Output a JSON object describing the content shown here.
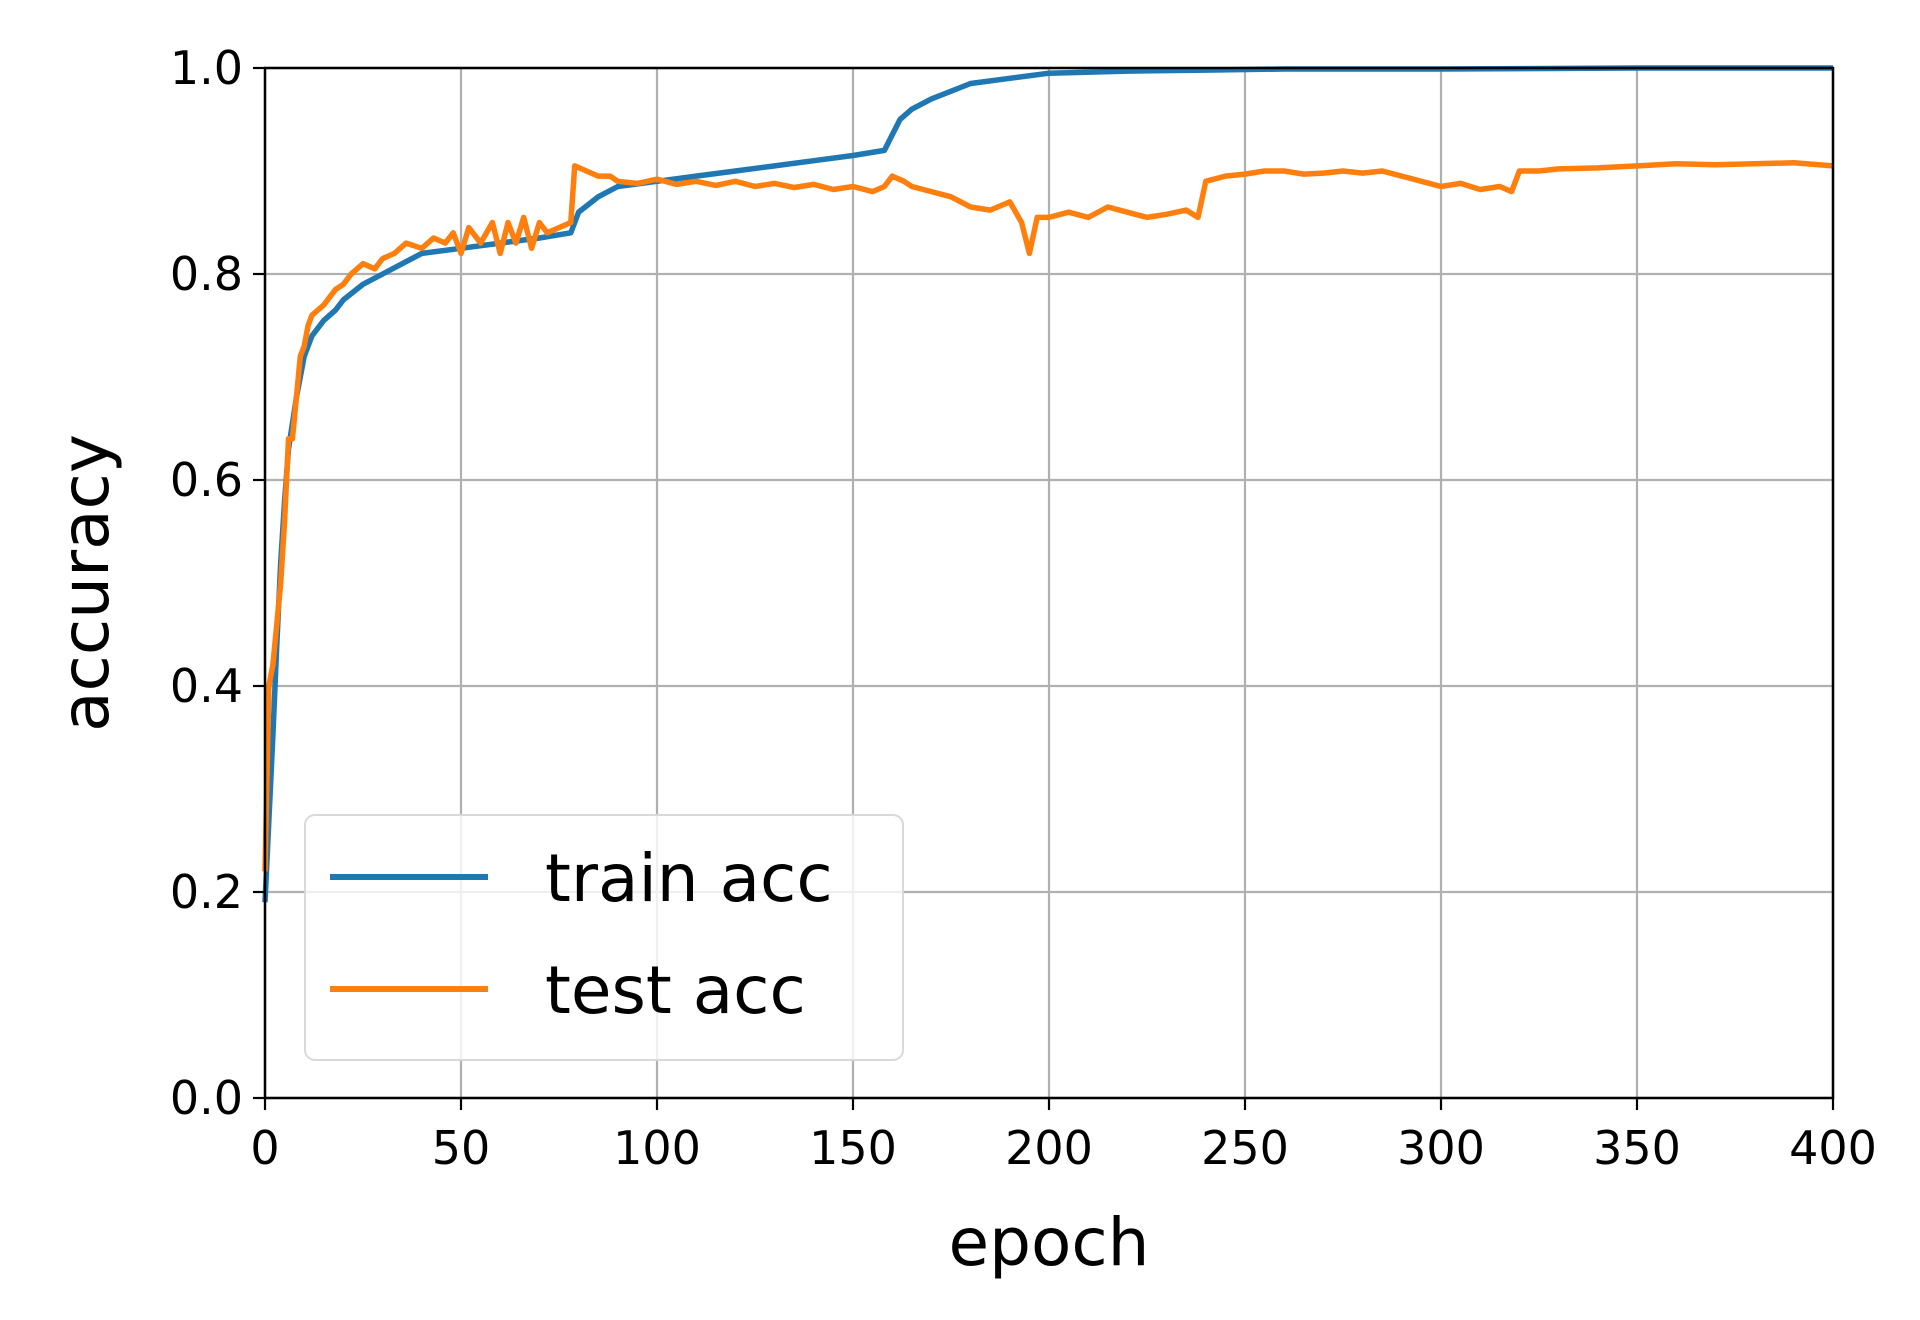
{
  "chart_data": {
    "type": "line",
    "title": "",
    "xlabel": "epoch",
    "ylabel": "accuracy",
    "xlim": [
      0,
      400
    ],
    "ylim": [
      0.0,
      1.0
    ],
    "x_ticks": [
      "0",
      "50",
      "100",
      "150",
      "200",
      "250",
      "300",
      "350",
      "400"
    ],
    "y_ticks": [
      "0.0",
      "0.2",
      "0.4",
      "0.6",
      "0.8",
      "1.0"
    ],
    "grid": true,
    "legend_position": "lower-left",
    "series": [
      {
        "name": "train acc",
        "color": "#1f77b4",
        "points": [
          [
            0,
            0.19
          ],
          [
            1,
            0.27
          ],
          [
            2,
            0.35
          ],
          [
            3,
            0.44
          ],
          [
            4,
            0.52
          ],
          [
            5,
            0.58
          ],
          [
            6,
            0.63
          ],
          [
            8,
            0.68
          ],
          [
            10,
            0.72
          ],
          [
            12,
            0.74
          ],
          [
            15,
            0.755
          ],
          [
            18,
            0.765
          ],
          [
            20,
            0.775
          ],
          [
            25,
            0.79
          ],
          [
            30,
            0.8
          ],
          [
            35,
            0.81
          ],
          [
            40,
            0.82
          ],
          [
            50,
            0.825
          ],
          [
            60,
            0.83
          ],
          [
            70,
            0.835
          ],
          [
            78,
            0.84
          ],
          [
            80,
            0.86
          ],
          [
            85,
            0.875
          ],
          [
            90,
            0.885
          ],
          [
            100,
            0.89
          ],
          [
            110,
            0.895
          ],
          [
            120,
            0.9
          ],
          [
            130,
            0.905
          ],
          [
            140,
            0.91
          ],
          [
            150,
            0.915
          ],
          [
            158,
            0.92
          ],
          [
            160,
            0.935
          ],
          [
            162,
            0.95
          ],
          [
            165,
            0.96
          ],
          [
            170,
            0.97
          ],
          [
            180,
            0.985
          ],
          [
            190,
            0.99
          ],
          [
            200,
            0.995
          ],
          [
            220,
            0.997
          ],
          [
            240,
            0.998
          ],
          [
            260,
            0.999
          ],
          [
            300,
            0.999
          ],
          [
            350,
            1.0
          ],
          [
            400,
            1.0
          ]
        ]
      },
      {
        "name": "test acc",
        "color": "#ff7f0e",
        "points": [
          [
            0,
            0.22
          ],
          [
            1,
            0.4
          ],
          [
            2,
            0.42
          ],
          [
            3,
            0.46
          ],
          [
            4,
            0.5
          ],
          [
            5,
            0.56
          ],
          [
            6,
            0.64
          ],
          [
            7,
            0.64
          ],
          [
            8,
            0.68
          ],
          [
            9,
            0.72
          ],
          [
            10,
            0.73
          ],
          [
            11,
            0.75
          ],
          [
            12,
            0.76
          ],
          [
            15,
            0.77
          ],
          [
            18,
            0.785
          ],
          [
            20,
            0.79
          ],
          [
            22,
            0.8
          ],
          [
            25,
            0.81
          ],
          [
            28,
            0.805
          ],
          [
            30,
            0.815
          ],
          [
            33,
            0.82
          ],
          [
            36,
            0.83
          ],
          [
            40,
            0.825
          ],
          [
            43,
            0.835
          ],
          [
            46,
            0.83
          ],
          [
            48,
            0.84
          ],
          [
            50,
            0.82
          ],
          [
            52,
            0.845
          ],
          [
            55,
            0.83
          ],
          [
            58,
            0.85
          ],
          [
            60,
            0.82
          ],
          [
            62,
            0.85
          ],
          [
            64,
            0.83
          ],
          [
            66,
            0.855
          ],
          [
            68,
            0.825
          ],
          [
            70,
            0.85
          ],
          [
            72,
            0.84
          ],
          [
            75,
            0.845
          ],
          [
            78,
            0.85
          ],
          [
            79,
            0.905
          ],
          [
            82,
            0.9
          ],
          [
            85,
            0.895
          ],
          [
            88,
            0.895
          ],
          [
            90,
            0.89
          ],
          [
            95,
            0.888
          ],
          [
            100,
            0.892
          ],
          [
            105,
            0.887
          ],
          [
            110,
            0.89
          ],
          [
            115,
            0.886
          ],
          [
            120,
            0.89
          ],
          [
            125,
            0.885
          ],
          [
            130,
            0.888
          ],
          [
            135,
            0.884
          ],
          [
            140,
            0.887
          ],
          [
            145,
            0.882
          ],
          [
            150,
            0.885
          ],
          [
            155,
            0.88
          ],
          [
            158,
            0.885
          ],
          [
            160,
            0.895
          ],
          [
            163,
            0.89
          ],
          [
            165,
            0.885
          ],
          [
            170,
            0.88
          ],
          [
            175,
            0.875
          ],
          [
            180,
            0.865
          ],
          [
            185,
            0.862
          ],
          [
            190,
            0.87
          ],
          [
            193,
            0.85
          ],
          [
            195,
            0.82
          ],
          [
            197,
            0.855
          ],
          [
            200,
            0.855
          ],
          [
            205,
            0.86
          ],
          [
            210,
            0.855
          ],
          [
            215,
            0.865
          ],
          [
            220,
            0.86
          ],
          [
            225,
            0.855
          ],
          [
            230,
            0.858
          ],
          [
            235,
            0.862
          ],
          [
            238,
            0.855
          ],
          [
            240,
            0.89
          ],
          [
            245,
            0.895
          ],
          [
            250,
            0.897
          ],
          [
            255,
            0.9
          ],
          [
            260,
            0.9
          ],
          [
            265,
            0.897
          ],
          [
            270,
            0.898
          ],
          [
            275,
            0.9
          ],
          [
            280,
            0.898
          ],
          [
            285,
            0.9
          ],
          [
            290,
            0.895
          ],
          [
            295,
            0.89
          ],
          [
            300,
            0.885
          ],
          [
            305,
            0.888
          ],
          [
            310,
            0.882
          ],
          [
            315,
            0.885
          ],
          [
            318,
            0.88
          ],
          [
            320,
            0.9
          ],
          [
            325,
            0.9
          ],
          [
            330,
            0.902
          ],
          [
            340,
            0.903
          ],
          [
            350,
            0.905
          ],
          [
            360,
            0.907
          ],
          [
            370,
            0.906
          ],
          [
            380,
            0.907
          ],
          [
            390,
            0.908
          ],
          [
            400,
            0.905
          ]
        ]
      }
    ]
  }
}
